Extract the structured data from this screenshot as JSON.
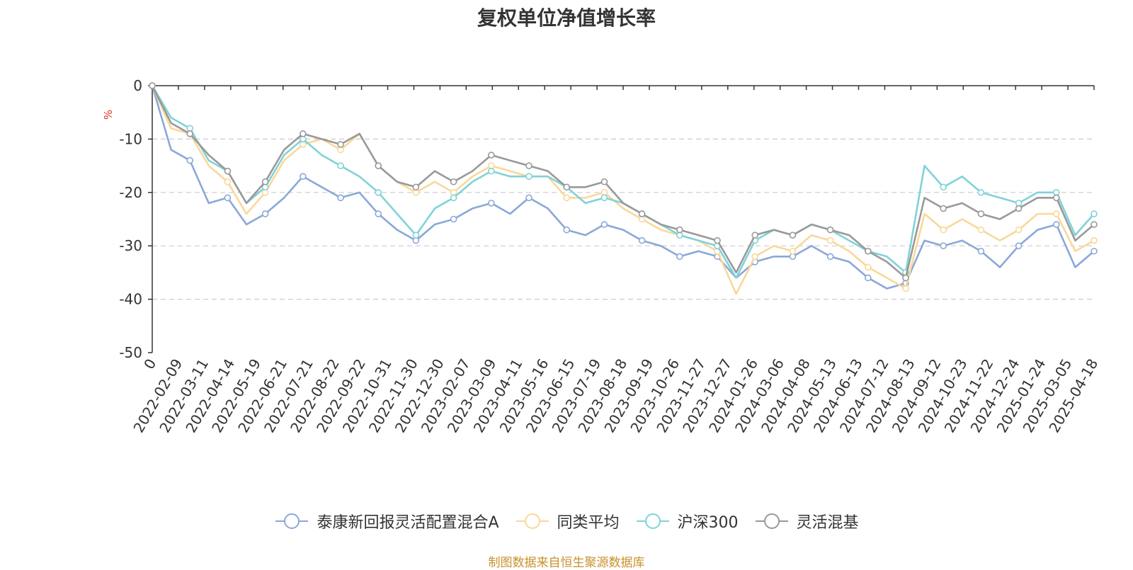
{
  "source_note": "制图数据来自恒生聚源数据库",
  "chart_data": {
    "type": "line",
    "title": "复权单位净值增长率",
    "ylabel": "%",
    "ylim": [
      -50,
      0
    ],
    "yticks": [
      0,
      -10,
      -20,
      -30,
      -40,
      -50
    ],
    "grid": true,
    "legend_position": "bottom",
    "x_tick_labels": [
      "0",
      "2022-02-09",
      "2022-03-11",
      "2022-04-14",
      "2022-05-19",
      "2022-06-21",
      "2022-07-21",
      "2022-08-22",
      "2022-09-22",
      "2022-10-31",
      "2022-11-30",
      "2022-12-30",
      "2023-02-07",
      "2023-03-09",
      "2023-04-11",
      "2023-05-16",
      "2023-06-15",
      "2023-07-19",
      "2023-08-18",
      "2023-09-19",
      "2023-10-26",
      "2023-11-27",
      "2023-12-27",
      "2024-01-26",
      "2024-03-06",
      "2024-04-08",
      "2024-05-13",
      "2024-06-13",
      "2024-07-12",
      "2024-08-13",
      "2024-09-12",
      "2024-10-23",
      "2024-11-22",
      "2024-12-24",
      "2025-01-24",
      "2025-03-05",
      "2025-04-18"
    ],
    "series": [
      {
        "name": "泰康新回报灵活配置混合A",
        "color": "#8aa8d8",
        "values": [
          0,
          -12,
          -14,
          -22,
          -21,
          -26,
          -24,
          -21,
          -17,
          -19,
          -21,
          -20,
          -24,
          -27,
          -29,
          -26,
          -25,
          -23,
          -22,
          -24,
          -21,
          -23,
          -27,
          -28,
          -26,
          -27,
          -29,
          -30,
          -32,
          -31,
          -32,
          -36,
          -33,
          -32,
          -32,
          -30,
          -32,
          -33,
          -36,
          -38,
          -37,
          -29,
          -30,
          -29,
          -31,
          -34,
          -30,
          -27,
          -26,
          -34,
          -31
        ]
      },
      {
        "name": "同类平均",
        "color": "#f9d89a",
        "values": [
          0,
          -8,
          -9,
          -15,
          -18,
          -24,
          -20,
          -14,
          -11,
          -10,
          -12,
          -9,
          -15,
          -18,
          -20,
          -18,
          -20,
          -17,
          -15,
          -16,
          -17,
          -17,
          -21,
          -21,
          -20,
          -23,
          -25,
          -27,
          -28,
          -29,
          -31,
          -39,
          -32,
          -30,
          -31,
          -28,
          -29,
          -31,
          -34,
          -36,
          -38,
          -24,
          -27,
          -25,
          -27,
          -29,
          -27,
          -24,
          -24,
          -31,
          -29
        ]
      },
      {
        "name": "沪深300",
        "color": "#7fd3d8",
        "values": [
          0,
          -6,
          -8,
          -14,
          -16,
          -22,
          -19,
          -13,
          -10,
          -13,
          -15,
          -17,
          -20,
          -24,
          -28,
          -23,
          -21,
          -18,
          -16,
          -17,
          -17,
          -17,
          -19,
          -22,
          -21,
          -22,
          -24,
          -26,
          -28,
          -29,
          -30,
          -36,
          -29,
          -27,
          -28,
          -26,
          -27,
          -29,
          -31,
          -32,
          -35,
          -15,
          -19,
          -17,
          -20,
          -21,
          -22,
          -20,
          -20,
          -28,
          -24
        ]
      },
      {
        "name": "灵活混基",
        "color": "#999999",
        "values": [
          0,
          -7,
          -9,
          -13,
          -16,
          -22,
          -18,
          -12,
          -9,
          -10,
          -11,
          -9,
          -15,
          -18,
          -19,
          -16,
          -18,
          -16,
          -13,
          -14,
          -15,
          -16,
          -19,
          -19,
          -18,
          -22,
          -24,
          -26,
          -27,
          -28,
          -29,
          -35,
          -28,
          -27,
          -28,
          -26,
          -27,
          -28,
          -31,
          -33,
          -36,
          -21,
          -23,
          -22,
          -24,
          -25,
          -23,
          -21,
          -21,
          -29,
          -26
        ]
      }
    ]
  }
}
